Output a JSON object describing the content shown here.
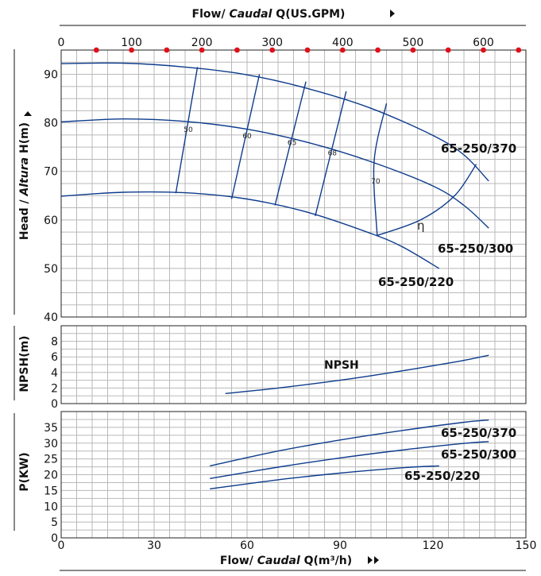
{
  "titles": {
    "top_axis": "Flow/ Caudal Q(US.GPM)",
    "top_axis_plain": "Flow/ ",
    "top_axis_italic": "Caudal",
    "top_axis_rest": " Q(US.GPM)",
    "bottom_axis_plain": "Flow/ ",
    "bottom_axis_italic": "Caudal",
    "bottom_axis_rest": " Q(m³/h)",
    "head_plain": "Head / ",
    "head_italic": "Altura",
    "head_rest": " H(m)",
    "npsh_axis": "NPSH(m)",
    "power_axis": "P(KW)"
  },
  "chart_data": [
    {
      "type": "line",
      "panel": "head",
      "x_unit": "m³/h",
      "xlim": [
        0,
        150
      ],
      "ylim": [
        40,
        95
      ],
      "x_ticks": [
        0,
        30,
        60,
        90,
        120,
        150
      ],
      "y_ticks": [
        40,
        50,
        60,
        70,
        80,
        90
      ],
      "secondary_x_axis": {
        "label": "Flow/ Caudal Q(US.GPM)",
        "ticks": [
          0,
          100,
          200,
          300,
          400,
          500,
          600
        ]
      },
      "series": [
        {
          "name": "65-250/370",
          "x": [
            0,
            20,
            40,
            60,
            80,
            100,
            120,
            130,
            138
          ],
          "y": [
            92.2,
            92.3,
            91.5,
            89.9,
            87.0,
            83.0,
            77.4,
            73.4,
            68.0
          ]
        },
        {
          "name": "65-250/300",
          "x": [
            0,
            20,
            40,
            60,
            80,
            100,
            120,
            130,
            138
          ],
          "y": [
            80.2,
            80.8,
            80.3,
            78.7,
            75.9,
            72.0,
            67.0,
            63.0,
            58.3
          ]
        },
        {
          "name": "65-250/220",
          "x": [
            0,
            20,
            40,
            60,
            80,
            100,
            110,
            122
          ],
          "y": [
            64.9,
            65.7,
            65.6,
            64.3,
            61.5,
            57.2,
            54.5,
            50.0
          ]
        }
      ],
      "efficiency_contours": [
        {
          "label": "50",
          "x": [
            44,
            37
          ],
          "y": [
            91.5,
            65.5
          ]
        },
        {
          "label": "60",
          "x": [
            64,
            55
          ],
          "y": [
            90.0,
            64.3
          ]
        },
        {
          "label": "65",
          "x": [
            79,
            69
          ],
          "y": [
            88.5,
            63.0
          ]
        },
        {
          "label": "68",
          "x": [
            92,
            82
          ],
          "y": [
            86.5,
            60.8
          ]
        },
        {
          "label": "70",
          "x": [
            105,
            101,
            102
          ],
          "y": [
            84.0,
            72.0,
            56.8
          ]
        }
      ],
      "efficiency_envelope": {
        "label": "η",
        "x": [
          102,
          116,
          127,
          134
        ],
        "y": [
          56.8,
          60.0,
          65.0,
          71.5
        ]
      }
    },
    {
      "type": "line",
      "panel": "npsh",
      "xlim": [
        0,
        150
      ],
      "ylim": [
        0,
        10
      ],
      "y_ticks": [
        0,
        2,
        4,
        6,
        8
      ],
      "series": [
        {
          "name": "NPSH",
          "x": [
            53,
            70,
            90,
            110,
            128,
            138
          ],
          "y": [
            1.3,
            2.0,
            3.0,
            4.2,
            5.4,
            6.2
          ]
        }
      ]
    },
    {
      "type": "line",
      "panel": "power",
      "xlim": [
        0,
        150
      ],
      "ylim": [
        0,
        40
      ],
      "y_ticks": [
        0,
        5,
        10,
        15,
        20,
        25,
        30,
        35
      ],
      "series": [
        {
          "name": "65-250/370",
          "x": [
            48,
            70,
            90,
            110,
            130,
            138
          ],
          "y": [
            22.8,
            27.5,
            31.0,
            34.0,
            36.6,
            37.3
          ]
        },
        {
          "name": "65-250/300",
          "x": [
            48,
            70,
            90,
            110,
            130,
            138
          ],
          "y": [
            18.8,
            22.4,
            25.3,
            27.8,
            29.9,
            30.5
          ]
        },
        {
          "name": "65-250/220",
          "x": [
            48,
            70,
            90,
            110,
            122
          ],
          "y": [
            15.5,
            18.4,
            20.5,
            22.2,
            22.8
          ]
        }
      ]
    }
  ],
  "labels": {
    "head_370": "65-250/370",
    "head_300": "65-250/300",
    "head_220": "65-250/220",
    "npsh": "NPSH",
    "p_370": "65-250/370",
    "p_300": "65-250/300",
    "p_220": "65-250/220",
    "eta": "η"
  },
  "colors": {
    "curve": "#0d3b8c",
    "grid": "#b9b9b9",
    "gpm_marker": "#e0101a"
  }
}
